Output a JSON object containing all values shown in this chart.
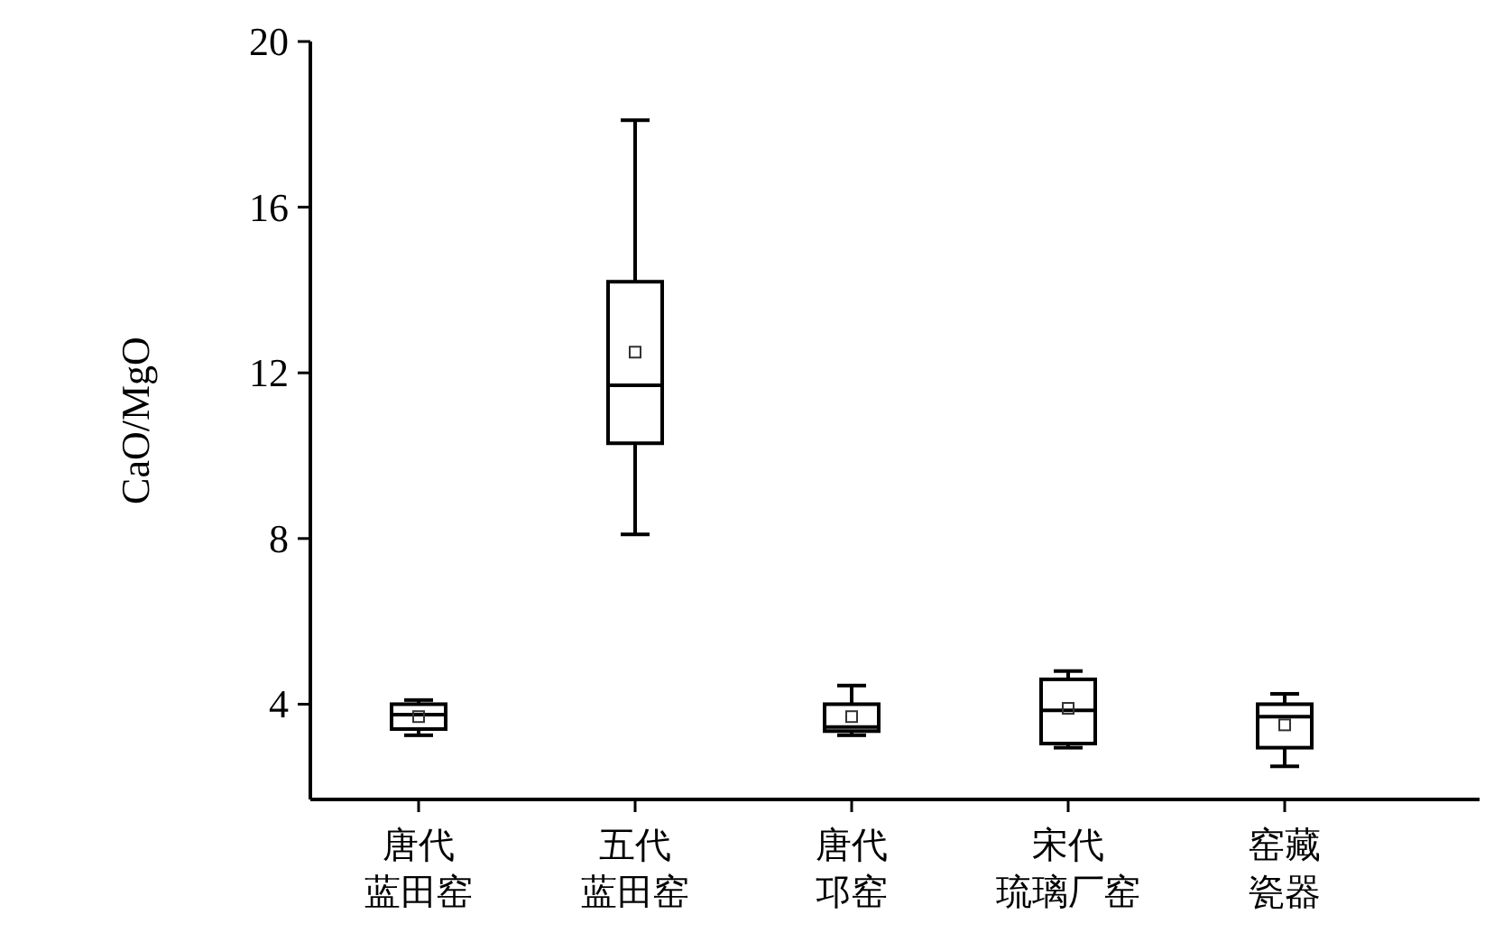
{
  "chart_data": {
    "type": "box",
    "ylabel": "CaO/MgO",
    "categories": [
      "唐代蓝田窑",
      "五代蓝田窑",
      "唐代邛窑",
      "宋代琉璃厂窑",
      "窑藏瓷器"
    ],
    "ylim": [
      1.7,
      20
    ],
    "yticks": [
      4,
      8,
      12,
      16,
      20
    ],
    "boxes": [
      {
        "low": 3.25,
        "q1": 3.4,
        "median": 3.75,
        "q3": 4.0,
        "high": 4.1,
        "mean": 3.7
      },
      {
        "low": 8.1,
        "q1": 10.3,
        "median": 11.7,
        "q3": 14.2,
        "high": 18.1,
        "mean": 12.5
      },
      {
        "low": 3.25,
        "q1": 3.35,
        "median": 3.45,
        "q3": 4.0,
        "high": 4.45,
        "mean": 3.7
      },
      {
        "low": 2.95,
        "q1": 3.05,
        "median": 3.85,
        "q3": 4.6,
        "high": 4.8,
        "mean": 3.9
      },
      {
        "low": 2.5,
        "q1": 2.95,
        "median": 3.7,
        "q3": 4.0,
        "high": 4.25,
        "mean": 3.5
      }
    ]
  }
}
